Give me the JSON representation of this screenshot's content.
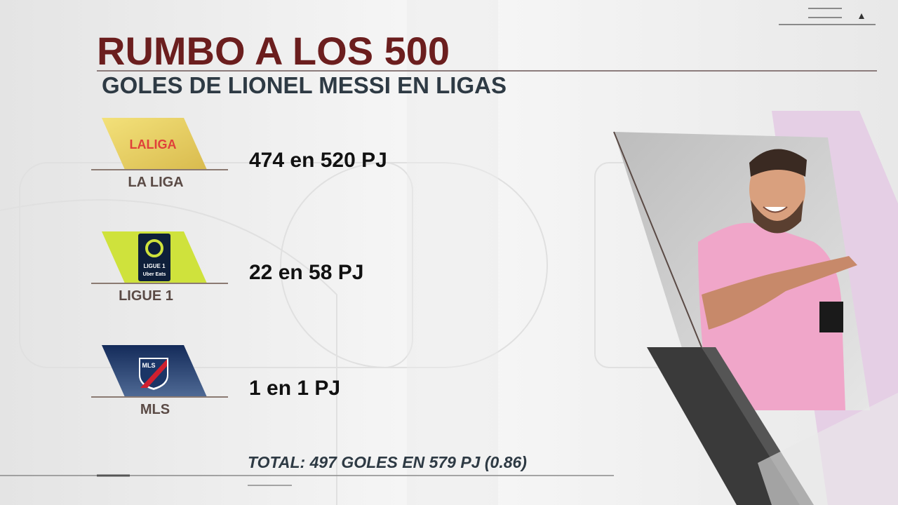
{
  "header": {
    "title": "RUMBO A LOS 500",
    "subtitle": "GOLES DE LIONEL MESSI EN LIGAS"
  },
  "leagues": [
    {
      "logo_text": "LALIGA",
      "name": "LA LIGA",
      "stat": "474 en 520 PJ"
    },
    {
      "logo_text": "LIGUE 1",
      "logo_sub": "Uber Eats",
      "name": "LIGUE 1",
      "stat": "22 en 58 PJ"
    },
    {
      "logo_text": "MLS",
      "name": "MLS",
      "stat": "1 en 1 PJ"
    }
  ],
  "footer": {
    "total": "TOTAL: 497 GOLES EN 579 PJ (0.86)"
  }
}
